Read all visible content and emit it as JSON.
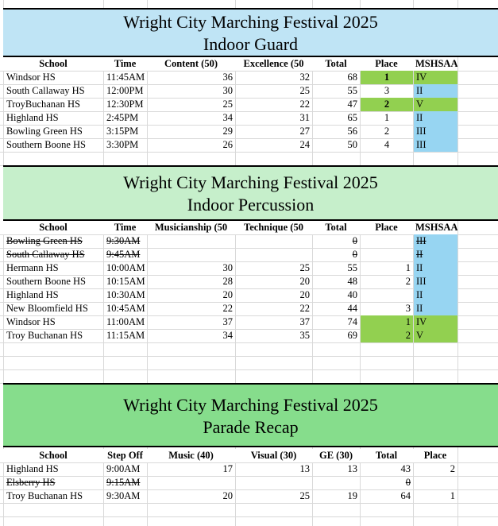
{
  "sections": [
    {
      "title_line1": "Wright City Marching Festival 2025",
      "title_line2": "Indoor Guard",
      "headers": [
        "School",
        "Time",
        "Content (50)",
        "Excellence (50",
        "Total",
        "Place",
        "MSHSAA"
      ],
      "rows": [
        [
          "Windsor HS",
          "11:45AM",
          "36",
          "32",
          "68",
          "1",
          "IV"
        ],
        [
          "South Callaway HS",
          "12:00PM",
          "30",
          "25",
          "55",
          "3",
          "II"
        ],
        [
          "TroyBuchanan HS",
          "12:30PM",
          "25",
          "22",
          "47",
          "2",
          "V"
        ],
        [
          "Highland HS",
          "2:45PM",
          "34",
          "31",
          "65",
          "1",
          "II"
        ],
        [
          "Bowling Green HS",
          "3:15PM",
          "29",
          "27",
          "56",
          "2",
          "III"
        ],
        [
          "Southern Boone HS",
          "3:30PM",
          "26",
          "24",
          "50",
          "4",
          "III"
        ]
      ]
    },
    {
      "title_line1": "Wright City Marching Festival 2025",
      "title_line2": "Indoor Percussion",
      "headers": [
        "School",
        "Time",
        "Musicianship (50",
        "Technique (50",
        "Total",
        "Place",
        "MSHSAA"
      ],
      "rows": [
        [
          "Bowling Green HS",
          "9:30AM",
          null,
          null,
          "0",
          null,
          "III"
        ],
        [
          "South Callaway HS",
          "9:45AM",
          null,
          null,
          "0",
          null,
          "II"
        ],
        [
          "Hermann HS",
          "10:00AM",
          "30",
          "25",
          "55",
          "1",
          "II"
        ],
        [
          "Southern Boone HS",
          "10:15AM",
          "28",
          "20",
          "48",
          "2",
          "III"
        ],
        [
          "Highland HS",
          "10:30AM",
          "20",
          "20",
          "40",
          null,
          "II"
        ],
        [
          "New Bloomfield HS",
          "10:45AM",
          "22",
          "22",
          "44",
          "3",
          "II"
        ],
        [
          "Windsor HS",
          "11:00AM",
          "37",
          "37",
          "74",
          "1",
          "IV"
        ],
        [
          "Troy Buchanan HS",
          "11:15AM",
          "34",
          "35",
          "69",
          "2",
          "V"
        ]
      ]
    },
    {
      "title_line1": "Wright City Marching Festival 2025",
      "title_line2": "Parade Recap",
      "headers": [
        "School",
        "Step Off",
        "Music (40)",
        "Visual (30)",
        "GE (30)",
        "Total",
        "Place"
      ],
      "rows": [
        [
          "Highland HS",
          "9:00AM",
          "17",
          "13",
          "13",
          "43",
          "2"
        ],
        [
          "Elsberry HS",
          "9:15AM",
          null,
          null,
          null,
          "0",
          null
        ],
        [
          "Troy Buchanan HS",
          "9:30AM",
          "20",
          "25",
          "19",
          "64",
          "1"
        ]
      ]
    }
  ]
}
